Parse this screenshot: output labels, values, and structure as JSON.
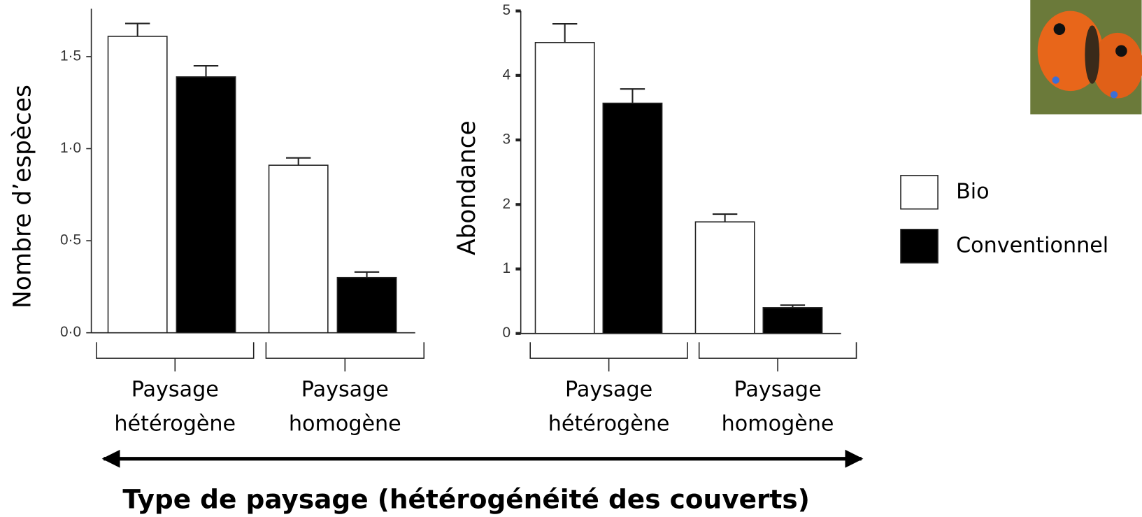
{
  "chart_data": [
    {
      "type": "bar",
      "ylabel": "Nombre d’espèces",
      "categories": [
        [
          "Paysage",
          "hétérogène"
        ],
        [
          "Paysage",
          "homogène"
        ]
      ],
      "series": [
        {
          "name": "Bio",
          "color": "#ffffff",
          "values": [
            1.61,
            0.91
          ],
          "errors": [
            0.07,
            0.04
          ]
        },
        {
          "name": "Conventionnel",
          "color": "#000000",
          "values": [
            1.39,
            0.3
          ],
          "errors": [
            0.06,
            0.03
          ]
        }
      ],
      "ylim": [
        0,
        1.76
      ],
      "yticks": [
        {
          "value": 0,
          "label": "0·0"
        },
        {
          "value": 0.5,
          "label": "0·5"
        },
        {
          "value": 1,
          "label": "1·0"
        },
        {
          "value": 1.5,
          "label": "1·5"
        }
      ]
    },
    {
      "type": "bar",
      "ylabel": "Abondance",
      "categories": [
        [
          "Paysage",
          "hétérogène"
        ],
        [
          "Paysage",
          "homogène"
        ]
      ],
      "series": [
        {
          "name": "Bio",
          "color": "#ffffff",
          "values": [
            4.51,
            1.73
          ],
          "errors": [
            0.29,
            0.12
          ]
        },
        {
          "name": "Conventionnel",
          "color": "#000000",
          "values": [
            3.57,
            0.4
          ],
          "errors": [
            0.22,
            0.04
          ]
        }
      ],
      "ylim": [
        0,
        5
      ],
      "yticks": [
        0,
        1,
        2,
        3,
        4,
        5
      ]
    }
  ],
  "x_axis_title": "Type de paysage (hétérogénéité des couverts)"
}
